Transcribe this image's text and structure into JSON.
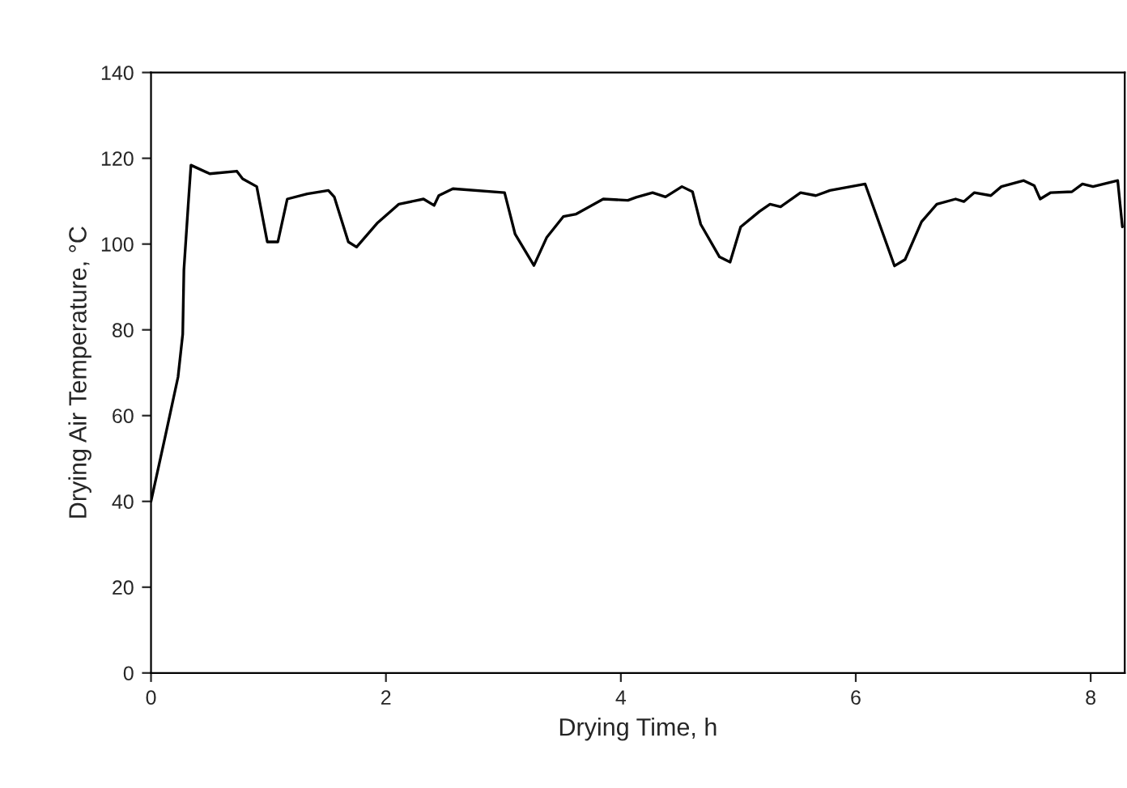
{
  "chart_data": {
    "type": "line",
    "xlabel": "Drying Time, h",
    "ylabel": "Drying Air Temperature, °C",
    "xlim": [
      0,
      8.29
    ],
    "xticks": [
      0,
      2,
      4,
      6,
      8
    ],
    "ylim": [
      0,
      140
    ],
    "yticks": [
      0,
      20,
      40,
      60,
      80,
      100,
      120,
      140
    ],
    "grid": false,
    "legend": false,
    "marker": "none",
    "line_style": "solid",
    "series": [
      {
        "color": "#000000",
        "x": [
          0,
          0.12,
          0.23,
          0.27,
          0.28,
          0.32,
          0.34,
          0.5,
          0.73,
          0.78,
          0.9,
          0.99,
          1.08,
          1.16,
          1.33,
          1.51,
          1.56,
          1.68,
          1.75,
          1.93,
          2.11,
          2.32,
          2.41,
          2.45,
          2.57,
          3.01,
          3.1,
          3.26,
          3.37,
          3.51,
          3.62,
          3.85,
          4.06,
          4.13,
          4.27,
          4.38,
          4.52,
          4.61,
          4.68,
          4.84,
          4.93,
          5.02,
          5.18,
          5.27,
          5.36,
          5.53,
          5.66,
          5.78,
          6.08,
          6.33,
          6.42,
          6.56,
          6.69,
          6.85,
          6.92,
          7.01,
          7.15,
          7.24,
          7.43,
          7.52,
          7.57,
          7.66,
          7.84,
          7.93,
          8.02,
          8.23,
          8.27
        ],
        "values": [
          40,
          55,
          69,
          79,
          94,
          110.5,
          118.4,
          116.4,
          117,
          115.2,
          113.4,
          100.5,
          100.5,
          110.5,
          111.7,
          112.5,
          111,
          100.5,
          99.3,
          105,
          109.3,
          110.5,
          109,
          111.3,
          112.9,
          112,
          102.3,
          95,
          101.6,
          106.4,
          107,
          110.5,
          110.2,
          110.9,
          112,
          111,
          113.4,
          112.2,
          104.6,
          97,
          95.8,
          104,
          107.6,
          109.3,
          108.7,
          112,
          111.3,
          112.5,
          114,
          94.9,
          96.4,
          105.2,
          109.3,
          110.5,
          109.9,
          112,
          111.3,
          113.4,
          114.8,
          113.6,
          110.5,
          112,
          112.2,
          114,
          113.4,
          114.8,
          104
        ]
      }
    ]
  }
}
